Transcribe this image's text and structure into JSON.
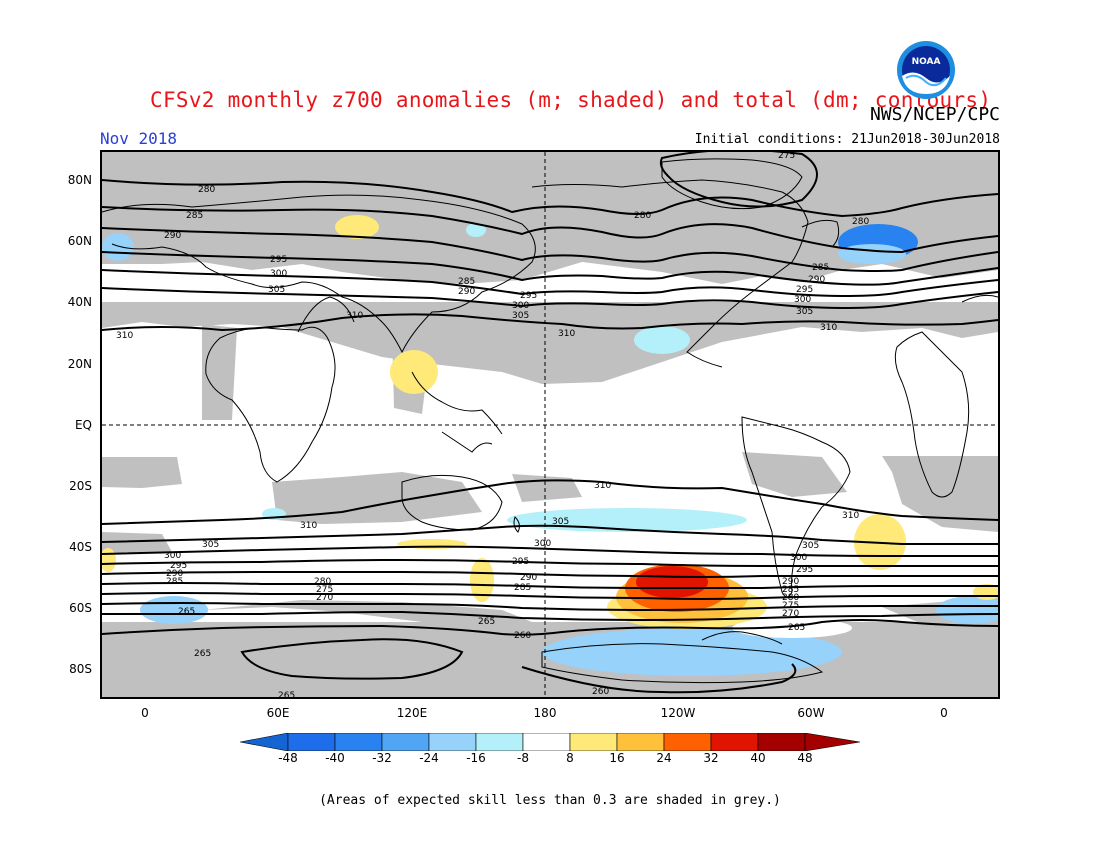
{
  "header": {
    "title": "CFSv2 monthly z700 anomalies (m; shaded) and total (dm; contours)",
    "agency": "NWS/NCEP/CPC",
    "month": "Nov 2018",
    "initial_conditions": "Initial conditions: 21Jun2018-30Jun2018",
    "logo_text": "NOAA"
  },
  "axes": {
    "lat_labels": [
      "80N",
      "60N",
      "40N",
      "20N",
      "EQ",
      "20S",
      "40S",
      "60S",
      "80S"
    ],
    "lon_labels": [
      "0",
      "60E",
      "120E",
      "180",
      "120W",
      "60W",
      "0"
    ]
  },
  "contour_labels": {
    "n280a": "280",
    "n280b": "280",
    "n280c": "280",
    "n275": "275",
    "n285a": "285",
    "n285b": "285",
    "n285c": "285",
    "n290a": "290",
    "n290b": "290",
    "n290c": "290",
    "n295a": "295",
    "n295b": "295",
    "n295c": "295",
    "n300a": "300",
    "n300b": "300",
    "n300c": "300",
    "n305a": "305",
    "n305b": "305",
    "n305c": "305",
    "n310a": "310",
    "n310b": "310",
    "n310c": "310",
    "n310d": "310",
    "s310a": "310",
    "s310b": "310",
    "s310c": "310",
    "s305a": "305",
    "s305b": "305",
    "s305c": "305",
    "s300a": "300",
    "s300b": "300",
    "s300c": "300",
    "s295a": "295",
    "s295b": "295",
    "s295c": "295",
    "s290a": "290",
    "s290b": "290",
    "s290c": "290",
    "s285a": "285",
    "s285b": "285",
    "s285c": "285",
    "s280a": "280",
    "s280b": "280",
    "s275a": "275",
    "s275b": "275",
    "s270a": "270",
    "s270b": "270",
    "s265a": "265",
    "s265b": "265",
    "s265c": "265",
    "s265d": "265",
    "s265e": "265",
    "s260a": "260",
    "s260b": "260"
  },
  "colorbar": {
    "ticks": [
      "-48",
      "-40",
      "-32",
      "-24",
      "-16",
      "-8",
      "8",
      "16",
      "24",
      "32",
      "40",
      "48"
    ],
    "colors": [
      "#1464d2",
      "#1e6eeb",
      "#2882f0",
      "#50a5f5",
      "#96d2fa",
      "#b4f0fa",
      "#ffffff",
      "#ffe978",
      "#ffc03c",
      "#ff6000",
      "#e11400",
      "#a50000",
      "#a50000"
    ]
  },
  "footnote": "(Areas of expected skill less than 0.3 are shaded in grey.)"
}
